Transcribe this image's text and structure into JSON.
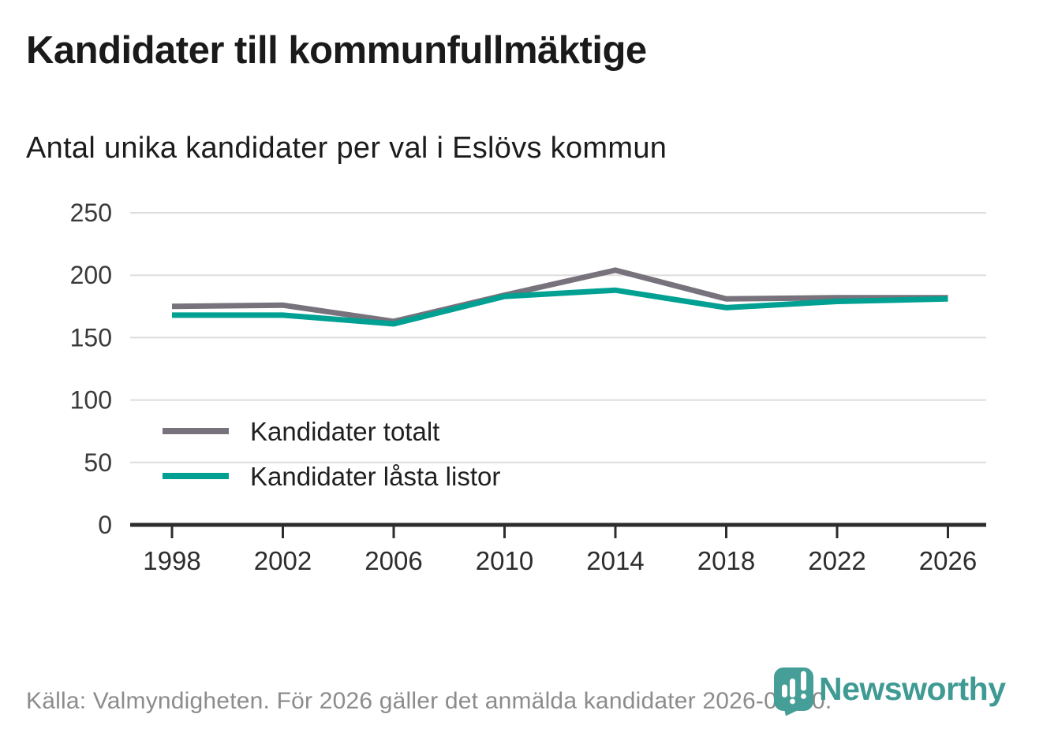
{
  "page": {
    "title": "Kandidater till kommunfullmäktige",
    "subtitle": "Antal unika kandidater per val i Eslövs kommun",
    "source_note": "Källa: Valmyndigheten. För 2026 gäller det anmälda kandidater 2026-04-10.",
    "brand": {
      "name": "Newsworthy",
      "color": "#3f9a94"
    }
  },
  "chart_data": {
    "type": "line",
    "title": "Kandidater till kommunfullmäktige",
    "subtitle": "Antal unika kandidater per val i Eslövs kommun",
    "x": [
      1998,
      2002,
      2006,
      2010,
      2014,
      2018,
      2022,
      2026
    ],
    "series": [
      {
        "name": "Kandidater totalt",
        "color": "#77727b",
        "values": [
          175,
          176,
          163,
          184,
          204,
          181,
          182,
          182
        ]
      },
      {
        "name": "Kandidater låsta listor",
        "color": "#00a193",
        "values": [
          168,
          168,
          161,
          183,
          188,
          174,
          179,
          181
        ]
      }
    ],
    "ylim": [
      0,
      250
    ],
    "yticks": [
      0,
      50,
      100,
      150,
      200,
      250
    ],
    "grid": "horizontal",
    "legend_position": "inside-left-middle",
    "grid_color": "#dddddd",
    "axis_color": "#2d2d2d",
    "tick_label_color": "#3a3a3a",
    "legend_text_color": "#1f1f1f"
  }
}
